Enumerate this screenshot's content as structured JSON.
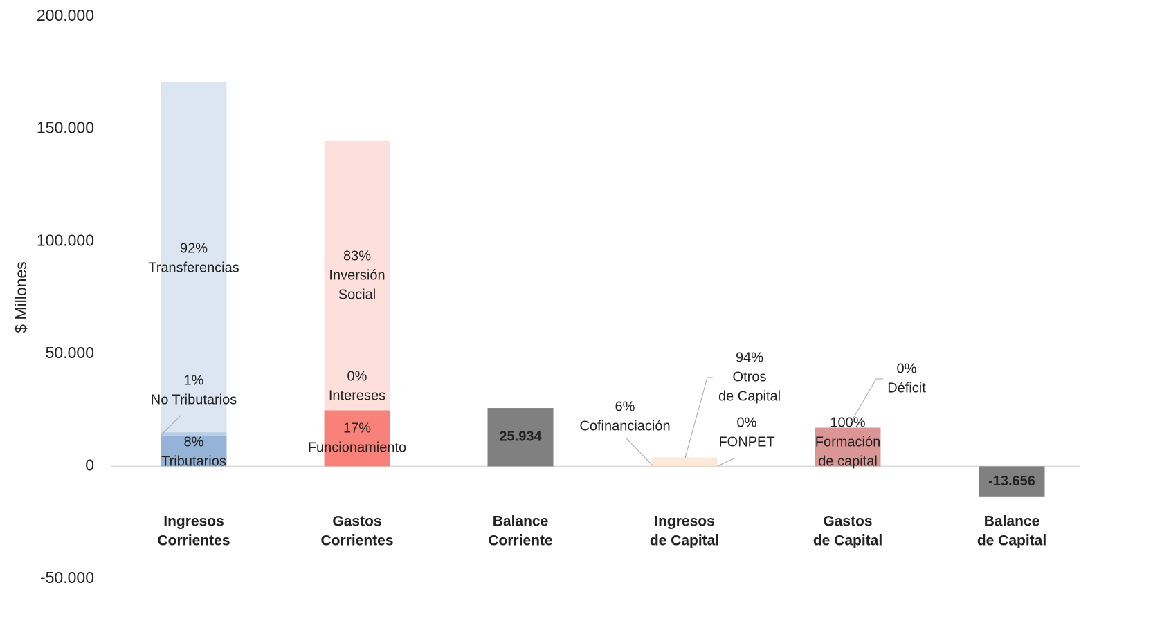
{
  "chart_data": {
    "type": "stacked-bar",
    "y_label": "$ Millones",
    "ylim": [
      -50000,
      200000
    ],
    "yticks": [
      {
        "value": -50000,
        "label": "-50.000"
      },
      {
        "value": 0,
        "label": "0"
      },
      {
        "value": 50000,
        "label": "50.000"
      },
      {
        "value": 100000,
        "label": "100.000"
      },
      {
        "value": 150000,
        "label": "150.000"
      },
      {
        "value": 200000,
        "label": "200.000"
      }
    ],
    "categories": [
      [
        "Ingresos",
        "Corrientes"
      ],
      [
        "Gastos",
        "Corrientes"
      ],
      [
        "Balance",
        "Corriente"
      ],
      [
        "Ingresos",
        "de Capital"
      ],
      [
        "Gastos",
        "de Capital"
      ],
      [
        "Balance",
        "de Capital"
      ]
    ],
    "bars": [
      {
        "segments": [
          {
            "value": 13660,
            "color": "#95b3d7",
            "label": [
              "8%",
              "Tributarios"
            ]
          },
          {
            "value": 1500,
            "color": "#b9cde5",
            "label": [
              "1%",
              "No Tributarios"
            ]
          },
          {
            "value": 155640,
            "color": "#dce6f2",
            "label": [
              "92%",
              "Transferencias"
            ]
          }
        ]
      },
      {
        "segments": [
          {
            "value": 24900,
            "color": "#f8817a",
            "label": [
              "17%",
              "Funcionamiento"
            ]
          },
          {
            "value": 0,
            "color": "#fbb5ae",
            "label": [
              "0%",
              "Intereses"
            ]
          },
          {
            "value": 119800,
            "color": "#fde0dc",
            "label": [
              "83%",
              "Inversión",
              "Social"
            ]
          }
        ]
      },
      {
        "segments": [
          {
            "value": 25934,
            "value_label": "25.934",
            "color": "#808080"
          }
        ]
      },
      {
        "segments": [
          {
            "value": 240,
            "color": "#fcd5b4",
            "label": [
              "6%",
              "Cofinanciación"
            ]
          },
          {
            "value": 3760,
            "color": "#fde9d9",
            "label": [
              "94%",
              "Otros",
              "de Capital"
            ]
          },
          {
            "value": 0,
            "color": "#fbd0a8",
            "label": [
              "0%",
              "FONPET"
            ]
          }
        ]
      },
      {
        "segments": [
          {
            "value": 17200,
            "color": "#da9694",
            "label": [
              "100%",
              "Formación",
              "de capital"
            ]
          },
          {
            "value": 0,
            "color": "#e6b8b7",
            "label": [
              "0%",
              "Déficit"
            ]
          }
        ]
      },
      {
        "segments": [
          {
            "value": -13656,
            "value_label": "-13.656",
            "color": "#808080"
          }
        ]
      }
    ]
  }
}
